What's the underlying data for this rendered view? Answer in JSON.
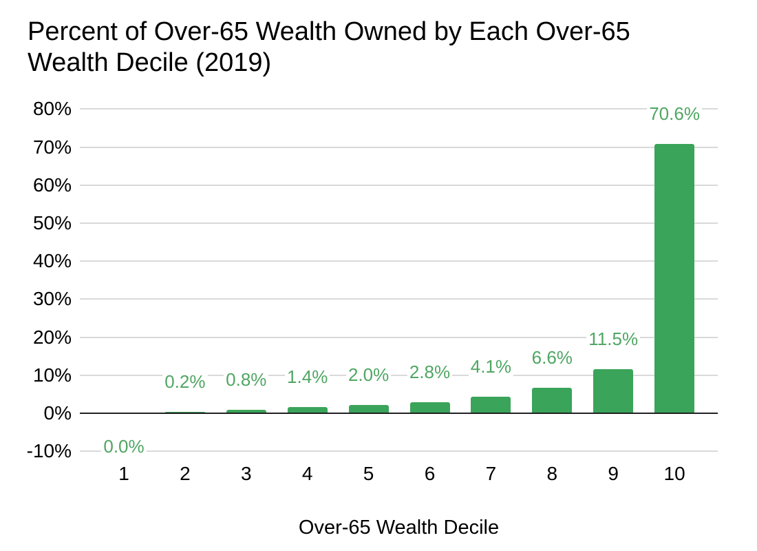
{
  "chart_data": {
    "type": "bar",
    "title": "Percent of Over-65 Wealth Owned by Each Over-65 Wealth Decile (2019)",
    "xlabel": "Over-65 Wealth Decile",
    "ylabel": "",
    "categories": [
      "1",
      "2",
      "3",
      "4",
      "5",
      "6",
      "7",
      "8",
      "9",
      "10"
    ],
    "values": [
      0.0,
      0.2,
      0.8,
      1.4,
      2.0,
      2.8,
      4.1,
      6.6,
      11.5,
      70.6
    ],
    "data_labels": [
      "0.0%",
      "0.2%",
      "0.8%",
      "1.4%",
      "2.0%",
      "2.8%",
      "4.1%",
      "6.6%",
      "11.5%",
      "70.6%"
    ],
    "y_ticks": [
      80,
      70,
      60,
      50,
      40,
      30,
      20,
      10,
      0,
      -10
    ],
    "y_tick_labels": [
      "80%",
      "70%",
      "60%",
      "50%",
      "40%",
      "30%",
      "20%",
      "10%",
      "0%",
      "-10%"
    ],
    "ylim": [
      -10,
      80
    ],
    "grid": true,
    "legend_position": "none",
    "colors": {
      "bar": "#3aa45a",
      "data_label": "#4fa663",
      "gridline": "#d9d9d9",
      "zero_axis": "#212121",
      "text": "#000000"
    }
  }
}
